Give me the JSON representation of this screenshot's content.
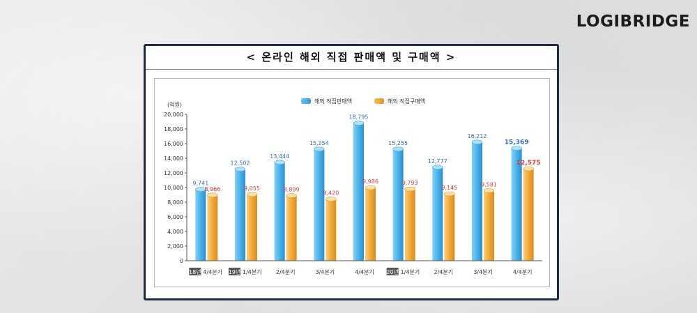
{
  "brand": "LOGIBRIDGE",
  "title": "< 온라인 해외 직접 판매액 및 구매액 >",
  "chart_data": {
    "type": "bar",
    "title": "< 온라인 해외 직접 판매액 및 구매액 >",
    "ylabel": "(억원)",
    "xlabel": "",
    "ylim": [
      0,
      20000
    ],
    "yticks": [
      "0",
      "2,000",
      "4,000",
      "6,000",
      "8,000",
      "10,000",
      "12,000",
      "14,000",
      "16,000",
      "18,000",
      "20,000"
    ],
    "grid": false,
    "legend_position": "top-center",
    "categories": [
      {
        "year": "18년",
        "label": "4/4분기"
      },
      {
        "year": "19년",
        "label": "1/4분기"
      },
      {
        "year": "",
        "label": "2/4분기"
      },
      {
        "year": "",
        "label": "3/4분기"
      },
      {
        "year": "",
        "label": "4/4분기"
      },
      {
        "year": "20년",
        "label": "1/4분기"
      },
      {
        "year": "",
        "label": "2/4분기"
      },
      {
        "year": "",
        "label": "3/4분기"
      },
      {
        "year": "",
        "label": "4/4분기"
      }
    ],
    "series": [
      {
        "name": "해외 직접판매액",
        "color": "#4fb6ec",
        "label_color": "#2f6fb5",
        "values": [
          9741,
          12502,
          13444,
          15254,
          18795,
          15255,
          12777,
          16212,
          15369
        ],
        "value_labels": [
          "9,741",
          "12,502",
          "13,444",
          "15,254",
          "18,795",
          "15,255",
          "12,777",
          "16,212",
          "15,369"
        ]
      },
      {
        "name": "해외 직접구매액",
        "color": "#f4ac3c",
        "label_color": "#e0393a",
        "values": [
          8966,
          9055,
          8899,
          8420,
          9986,
          9793,
          9145,
          9581,
          12575
        ],
        "value_labels": [
          "8,966",
          "9,055",
          "8,899",
          "8,420",
          "9,986",
          "9,793",
          "9,145",
          "9,581",
          "12,575"
        ]
      }
    ]
  }
}
